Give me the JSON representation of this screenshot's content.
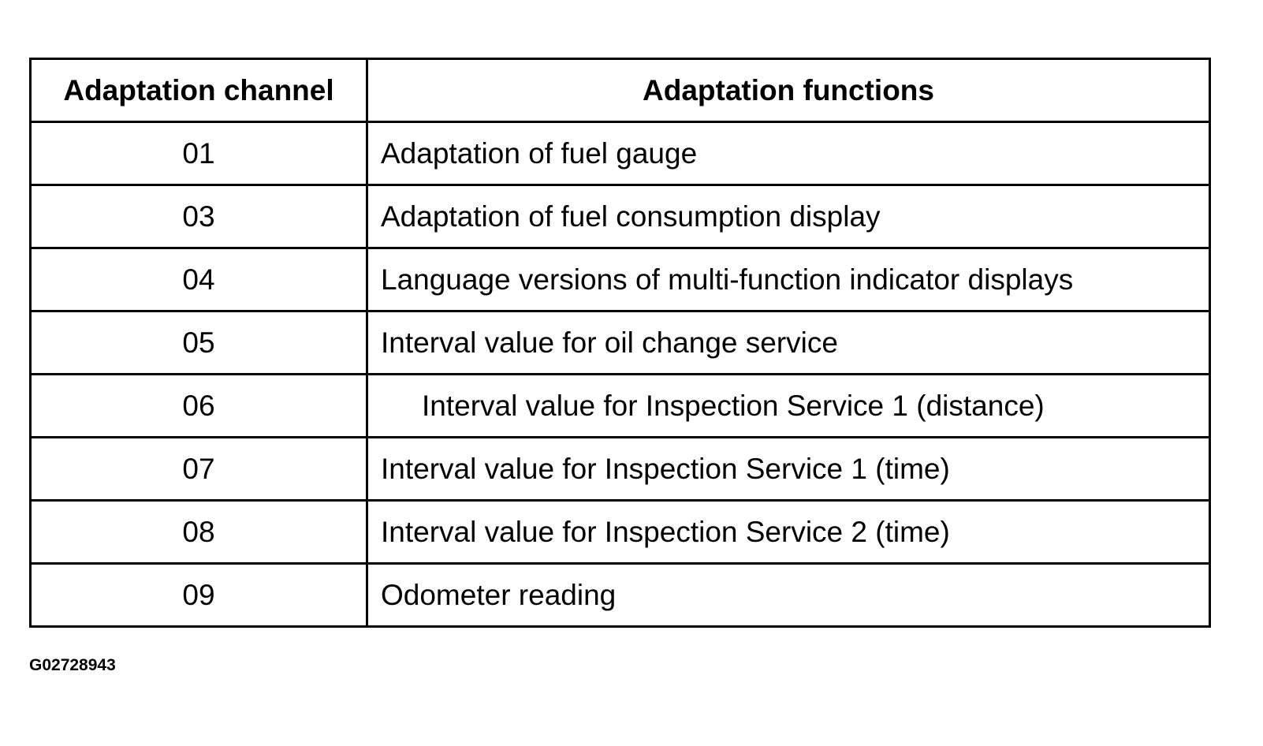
{
  "table": {
    "headers": {
      "channel": "Adaptation channel",
      "functions": "Adaptation functions"
    },
    "rows": [
      {
        "channel": "01",
        "function": "Adaptation of fuel gauge"
      },
      {
        "channel": "03",
        "function": "Adaptation of fuel consumption display"
      },
      {
        "channel": "04",
        "function": "Language versions of multi-function indicator displays"
      },
      {
        "channel": "05",
        "function": "Interval value for oil change service"
      },
      {
        "channel": "06",
        "function": "Interval value for Inspection Service 1 (distance)"
      },
      {
        "channel": "07",
        "function": "Interval value for Inspection Service 1 (time)"
      },
      {
        "channel": "08",
        "function": "Interval value for Inspection Service 2 (time)"
      },
      {
        "channel": "09",
        "function": "Odometer reading"
      }
    ]
  },
  "figure_id": "G02728943"
}
